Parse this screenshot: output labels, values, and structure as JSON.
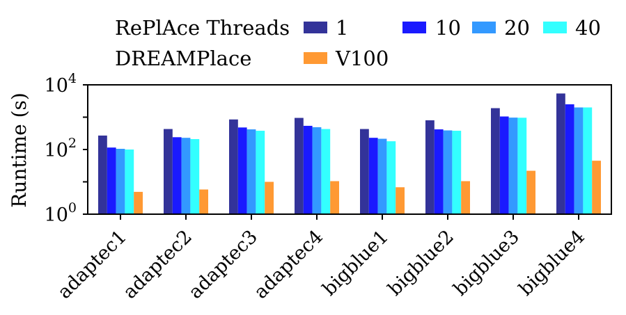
{
  "chart_data": {
    "type": "bar",
    "categories": [
      "adaptec1",
      "adaptec2",
      "adaptec3",
      "adaptec4",
      "bigblue1",
      "bigblue2",
      "bigblue3",
      "bigblue4"
    ],
    "series": [
      {
        "name": "1",
        "group": "RePlAce Threads",
        "color": "#333399",
        "values": [
          270,
          430,
          850,
          950,
          430,
          800,
          1900,
          5400
        ]
      },
      {
        "name": "10",
        "group": "RePlAce Threads",
        "color": "#1a1aff",
        "values": [
          115,
          240,
          480,
          540,
          230,
          420,
          1050,
          2500
        ]
      },
      {
        "name": "20",
        "group": "RePlAce Threads",
        "color": "#3399ff",
        "values": [
          105,
          230,
          420,
          490,
          215,
          390,
          970,
          2000
        ]
      },
      {
        "name": "40",
        "group": "RePlAce Threads",
        "color": "#33ffff",
        "values": [
          100,
          210,
          380,
          430,
          180,
          380,
          960,
          2000
        ]
      },
      {
        "name": "V100",
        "group": "DREAMPlace",
        "color": "#ff9933",
        "values": [
          4.9,
          5.8,
          10,
          10.5,
          6.8,
          10.5,
          22,
          45
        ]
      }
    ],
    "ylabel": "Runtime (s)",
    "yscale": "log",
    "ylim": [
      1,
      10000
    ],
    "yticks": [
      {
        "base": "10",
        "exp": "0"
      },
      {
        "base": "10",
        "exp": "2"
      },
      {
        "base": "10",
        "exp": "4"
      }
    ],
    "legend": {
      "placement": "top",
      "groups": [
        {
          "label": "RePlAce Threads",
          "entries": [
            "1",
            "10",
            "20",
            "40"
          ]
        },
        {
          "label": "DREAMPlace",
          "entries": [
            "V100"
          ]
        }
      ]
    },
    "grid": false
  }
}
